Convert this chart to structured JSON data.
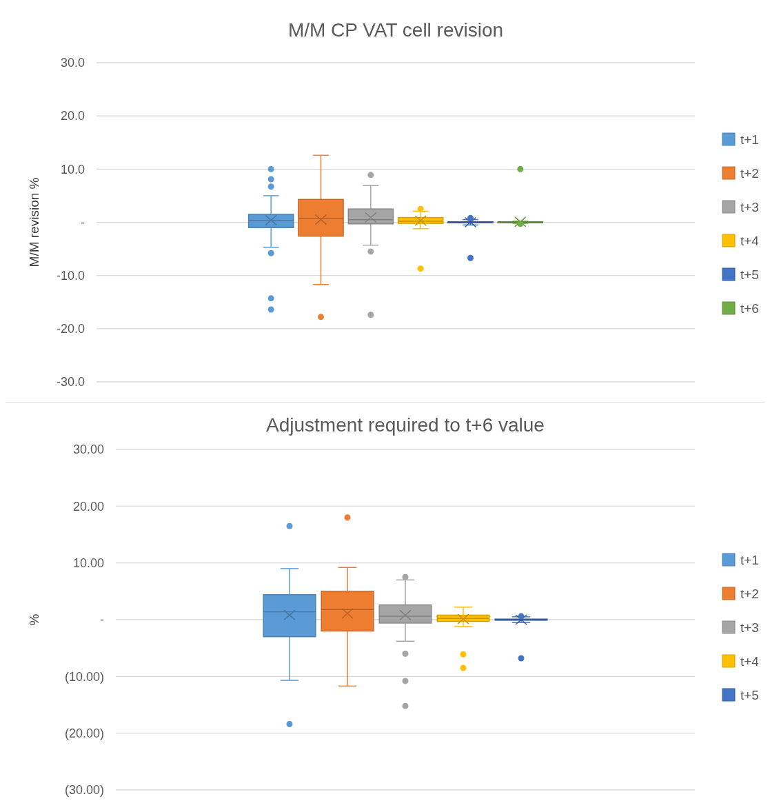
{
  "chart_data": [
    {
      "type": "box",
      "title": "M/M CP VAT cell revision",
      "ylabel": "M/M revision %",
      "categories": [
        null
      ],
      "ylim": [
        -30,
        30
      ],
      "yticks": [
        {
          "value": -30,
          "label": "-30.0"
        },
        {
          "value": -20,
          "label": "-20.0"
        },
        {
          "value": -10,
          "label": "-10.0"
        },
        {
          "value": 0,
          "label": "-"
        },
        {
          "value": 10,
          "label": "10.0"
        },
        {
          "value": 20,
          "label": "20.0"
        },
        {
          "value": 30,
          "label": "30.0"
        }
      ],
      "grid": "y",
      "legend": "right",
      "series": [
        {
          "name": "t+1",
          "color": "#5b9bd5",
          "boxes": [
            {
              "low": -4.7,
              "q1": -1.0,
              "median": 0.3,
              "q3": 1.5,
              "high": 5.0,
              "mean": 0.4,
              "outliers": [
                10.0,
                8.1,
                6.7,
                -5.8,
                -14.3,
                -16.4
              ]
            }
          ]
        },
        {
          "name": "t+2",
          "color": "#ed7d31",
          "boxes": [
            {
              "low": -11.7,
              "q1": -2.6,
              "median": 0.7,
              "q3": 4.3,
              "high": 12.6,
              "mean": 0.5,
              "outliers": [
                -17.8
              ]
            }
          ]
        },
        {
          "name": "t+3",
          "color": "#a5a5a5",
          "boxes": [
            {
              "low": -4.3,
              "q1": -0.3,
              "median": 0.5,
              "q3": 2.5,
              "high": 6.9,
              "mean": 0.9,
              "outliers": [
                8.9,
                -5.5,
                -17.4
              ]
            }
          ]
        },
        {
          "name": "t+4",
          "color": "#ffc000",
          "boxes": [
            {
              "low": -1.2,
              "q1": -0.2,
              "median": 0.2,
              "q3": 0.9,
              "high": 2.1,
              "mean": 0.3,
              "outliers": [
                2.5,
                -8.7
              ]
            }
          ]
        },
        {
          "name": "t+5",
          "color": "#4472c4",
          "boxes": [
            {
              "low": -0.5,
              "q1": -0.1,
              "median": 0,
              "q3": 0.1,
              "high": 0.5,
              "mean": 0,
              "outliers": [
                0.8,
                -6.7
              ]
            }
          ]
        },
        {
          "name": "t+6",
          "color": "#70ad47",
          "boxes": [
            {
              "low": -0.2,
              "q1": -0.1,
              "median": 0,
              "q3": 0.1,
              "high": 0.2,
              "mean": 0.1,
              "outliers": [
                10.0,
                -0.3
              ]
            }
          ]
        }
      ]
    },
    {
      "type": "box",
      "title": "Adjustment required to t+6 value",
      "ylabel": "%",
      "categories": [
        null
      ],
      "ylim": [
        -30,
        30
      ],
      "yticks": [
        {
          "value": -30,
          "label": "(30.00)"
        },
        {
          "value": -20,
          "label": "(20.00)"
        },
        {
          "value": -10,
          "label": "(10.00)"
        },
        {
          "value": 0,
          "label": "-"
        },
        {
          "value": 10,
          "label": "10.00"
        },
        {
          "value": 20,
          "label": "20.00"
        },
        {
          "value": 30,
          "label": "30.00"
        }
      ],
      "grid": "y",
      "legend": "right",
      "series": [
        {
          "name": "t+1",
          "color": "#5b9bd5",
          "boxes": [
            {
              "low": -10.7,
              "q1": -3.0,
              "median": 1.4,
              "q3": 4.4,
              "high": 9.0,
              "mean": 0.8,
              "outliers": [
                16.5,
                -18.4
              ]
            }
          ]
        },
        {
          "name": "t+2",
          "color": "#ed7d31",
          "boxes": [
            {
              "low": -11.7,
              "q1": -2.0,
              "median": 1.8,
              "q3": 5.0,
              "high": 9.2,
              "mean": 1.1,
              "outliers": [
                18.0
              ]
            }
          ]
        },
        {
          "name": "t+3",
          "color": "#a5a5a5",
          "boxes": [
            {
              "low": -3.8,
              "q1": -0.6,
              "median": 0.6,
              "q3": 2.6,
              "high": 7.0,
              "mean": 0.8,
              "outliers": [
                7.5,
                -6.0,
                -10.8,
                -15.2
              ]
            }
          ]
        },
        {
          "name": "t+4",
          "color": "#ffc000",
          "boxes": [
            {
              "low": -1.2,
              "q1": -0.3,
              "median": 0.2,
              "q3": 0.8,
              "high": 2.2,
              "mean": 0.1,
              "outliers": [
                -6.1,
                -8.5
              ]
            }
          ]
        },
        {
          "name": "t+5",
          "color": "#4472c4",
          "boxes": [
            {
              "low": -0.5,
              "q1": -0.1,
              "median": 0,
              "q3": 0.1,
              "high": 0.5,
              "mean": 0,
              "outliers": [
                0.6,
                -6.8
              ]
            }
          ]
        }
      ]
    }
  ]
}
